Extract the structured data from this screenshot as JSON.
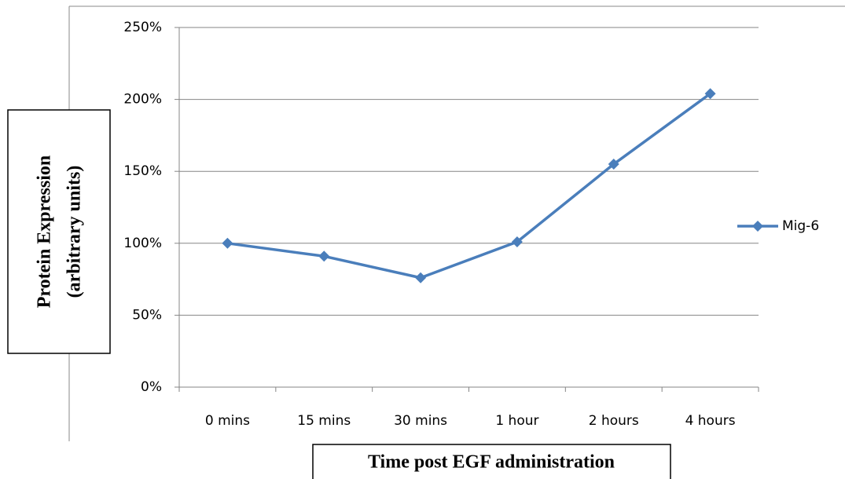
{
  "chart_data": {
    "type": "line",
    "x_label": "Time post EGF administration",
    "y_label": [
      "Protein Expression",
      "(arbitrary units)"
    ],
    "categories": [
      "0 mins",
      "15 mins",
      "30 mins",
      "1 hour",
      "2 hours",
      "4 hours"
    ],
    "series": [
      {
        "name": "Mig-6",
        "color": "#4a7ebb",
        "values": [
          100,
          91,
          76,
          101,
          155,
          204
        ]
      }
    ],
    "ylim": [
      0,
      250
    ],
    "yticks": [
      {
        "value": 0,
        "label": "0%"
      },
      {
        "value": 50,
        "label": "50%"
      },
      {
        "value": 100,
        "label": "100%"
      },
      {
        "value": 150,
        "label": "150%"
      },
      {
        "value": 200,
        "label": "200%"
      },
      {
        "value": 250,
        "label": "250%"
      }
    ],
    "grid": true,
    "legend": "right"
  }
}
